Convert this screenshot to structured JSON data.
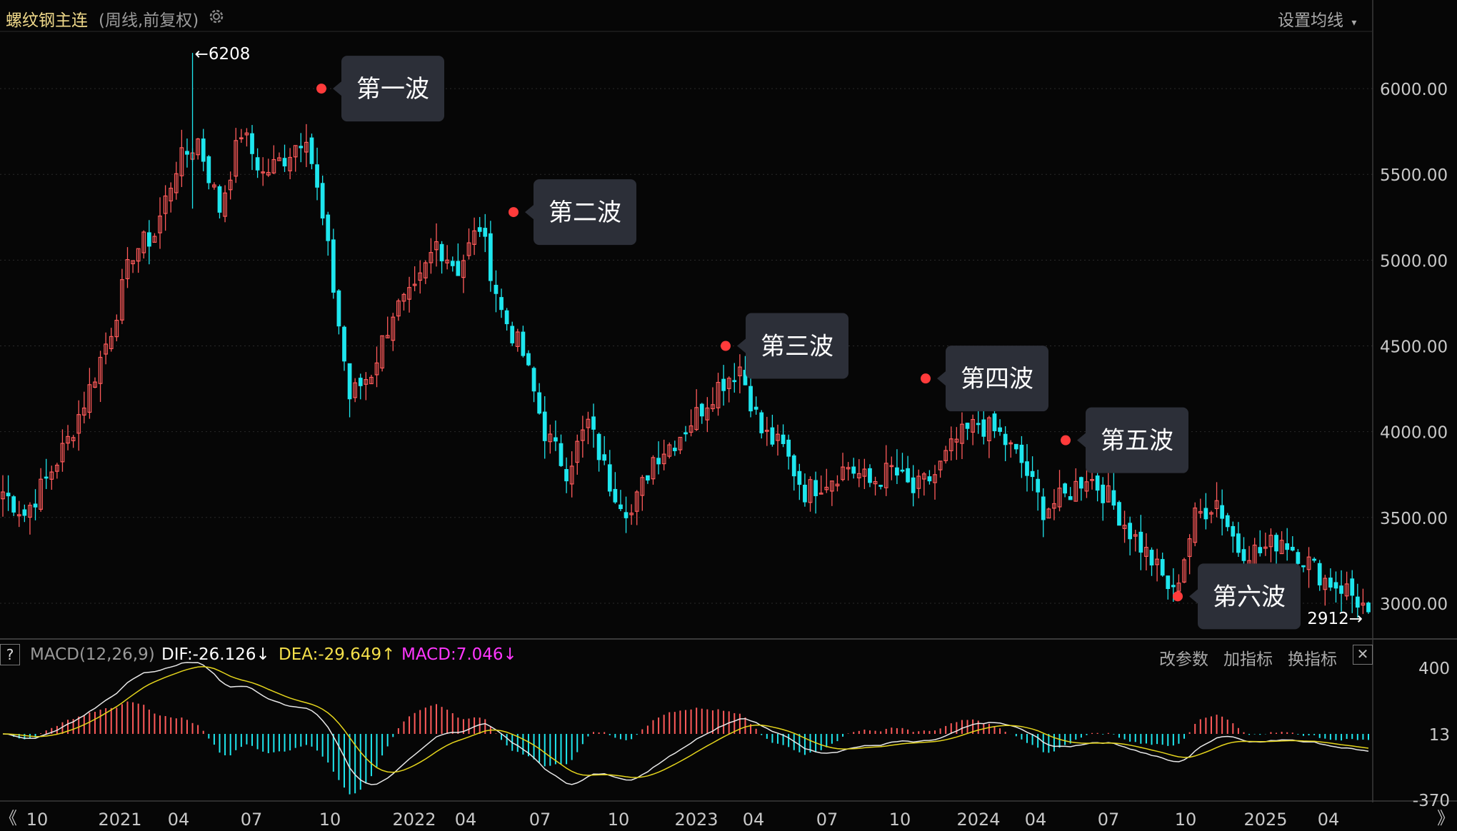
{
  "header": {
    "symbol": "螺纹钢主连",
    "period": "(周线,前复权)",
    "ma_setting_label": "设置均线",
    "dropdown_glyph": "▾"
  },
  "macd_bar": {
    "help_label": "?",
    "name": "MACD(12,26,9)",
    "dif_text": "DIF:-26.126",
    "dif_arrow": "↓",
    "dea_text": "DEA:-29.649",
    "dea_arrow": "↑",
    "macd_text": "MACD:7.046",
    "macd_arrow": "↓",
    "btn_params": "改参数",
    "btn_add": "加指标",
    "btn_switch": "换指标",
    "close_glyph": "✕"
  },
  "nav": {
    "left": "《",
    "right": "》"
  },
  "colors": {
    "up": "#ff5a5a",
    "down": "#1ee6ee",
    "dif": "#e8e8e8",
    "dea": "#e4d41c",
    "wave_dot": "#ff3b3b",
    "callout_bg": "#2c2f38",
    "grid": "#2a2a2a"
  },
  "chart_data": {
    "type": "candlestick",
    "timeframe": "weekly",
    "ylim": [
      2800,
      6350
    ],
    "y_ticks": [
      "6000.00",
      "5500.00",
      "5000.00",
      "4500.00",
      "4000.00",
      "3500.00",
      "3000.00"
    ],
    "x_ticks": [
      "10",
      "2021",
      "04",
      "07",
      "10",
      "2022",
      "04",
      "07",
      "10",
      "2023",
      "04",
      "07",
      "10",
      "2024",
      "04",
      "07",
      "10",
      "2025",
      "04"
    ],
    "high_marker": {
      "label": "6208",
      "value": 6208
    },
    "low_marker": {
      "label": "2912",
      "value": 2912
    },
    "waves": [
      {
        "label": "第一波",
        "value": 6000
      },
      {
        "label": "第二波",
        "value": 5280
      },
      {
        "label": "第三波",
        "value": 4500
      },
      {
        "label": "第四波",
        "value": 4310
      },
      {
        "label": "第五波",
        "value": 3950
      },
      {
        "label": "第六波",
        "value": 3040
      }
    ],
    "closes_anchor": [
      3650,
      3520,
      3720,
      3950,
      4250,
      4600,
      5050,
      5150,
      5550,
      5700,
      5300,
      5750,
      5500,
      5600,
      5750,
      5050,
      4200,
      4350,
      4700,
      4800,
      5100,
      4950,
      5200,
      4700,
      4450,
      4000,
      3780,
      4050,
      3700,
      3520,
      3850,
      3950,
      4100,
      4270,
      4380,
      4000,
      3900,
      3650,
      3720,
      3800,
      3700,
      3780,
      3650,
      3750,
      3950,
      4050,
      3980,
      3820,
      3550,
      3620,
      3750,
      3620,
      3420,
      3250,
      3050,
      3500,
      3600,
      3320,
      3300,
      3380,
      3270,
      3140,
      3080,
      2950
    ],
    "macd": {
      "ylim": [
        -370,
        400
      ],
      "y_ticks": [
        "400",
        "13",
        "-370"
      ]
    }
  }
}
